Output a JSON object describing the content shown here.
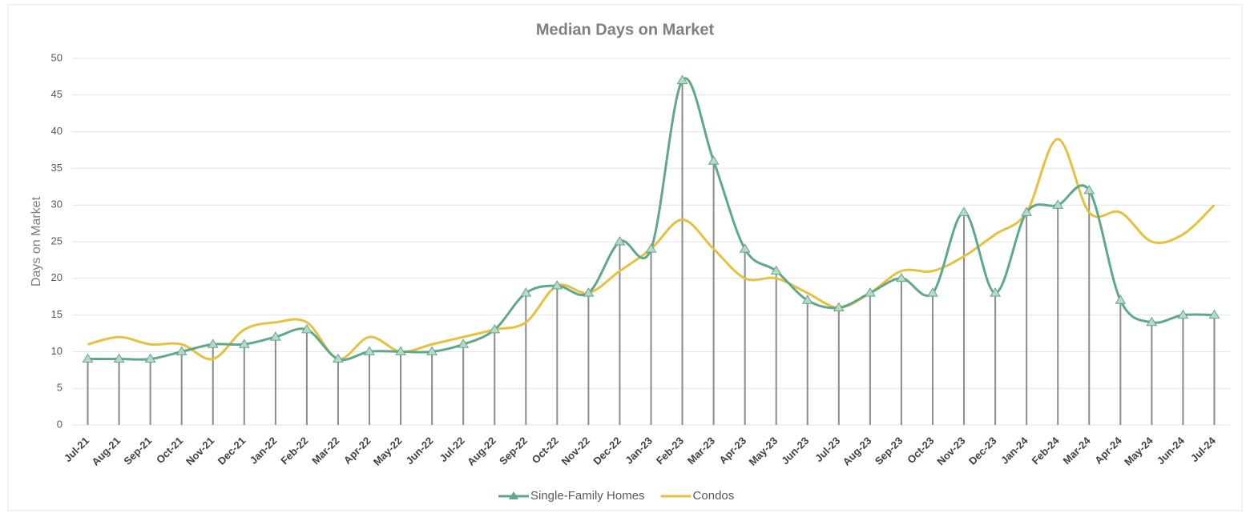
{
  "chart_data": {
    "type": "line",
    "title": "Median Days on Market",
    "ylabel": "Days on Market",
    "categories": [
      "Jul-21",
      "Aug-21",
      "Sep-21",
      "Oct-21",
      "Nov-21",
      "Dec-21",
      "Jan-22",
      "Feb-22",
      "Mar-22",
      "Apr-22",
      "May-22",
      "Jun-22",
      "Jul-22",
      "Aug-22",
      "Sep-22",
      "Oct-22",
      "Nov-22",
      "Dec-22",
      "Jan-23",
      "Feb-23",
      "Mar-23",
      "Apr-23",
      "May-23",
      "Jun-23",
      "Jul-23",
      "Aug-23",
      "Sep-23",
      "Oct-23",
      "Nov-23",
      "Dec-23",
      "Jan-24",
      "Feb-24",
      "Mar-24",
      "Apr-24",
      "May-24",
      "Jun-24",
      "Jul-24"
    ],
    "series": [
      {
        "name": "Single-Family Homes",
        "color": "#5fa88a",
        "values": [
          9,
          9,
          9,
          10,
          11,
          11,
          12,
          13,
          9,
          10,
          10,
          10,
          11,
          13,
          18,
          19,
          18,
          25,
          24,
          47,
          36,
          24,
          21,
          17,
          16,
          18,
          20,
          18,
          29,
          18,
          29,
          30,
          32,
          17,
          14,
          15,
          15
        ]
      },
      {
        "name": "Condos",
        "color": "#e6c13f",
        "values": [
          11,
          12,
          11,
          11,
          9,
          13,
          14,
          14,
          9,
          12,
          10,
          11,
          12,
          13,
          14,
          19,
          18,
          21,
          24,
          28,
          24,
          20,
          20,
          18,
          16,
          18,
          21,
          21,
          23,
          26,
          29,
          39,
          29,
          29,
          25,
          26,
          30
        ]
      }
    ],
    "ylim": [
      0,
      50
    ],
    "yticks": [
      0,
      5,
      10,
      15,
      20,
      25,
      30,
      35,
      40,
      45,
      50
    ],
    "grid": true,
    "legend": "bottom"
  }
}
